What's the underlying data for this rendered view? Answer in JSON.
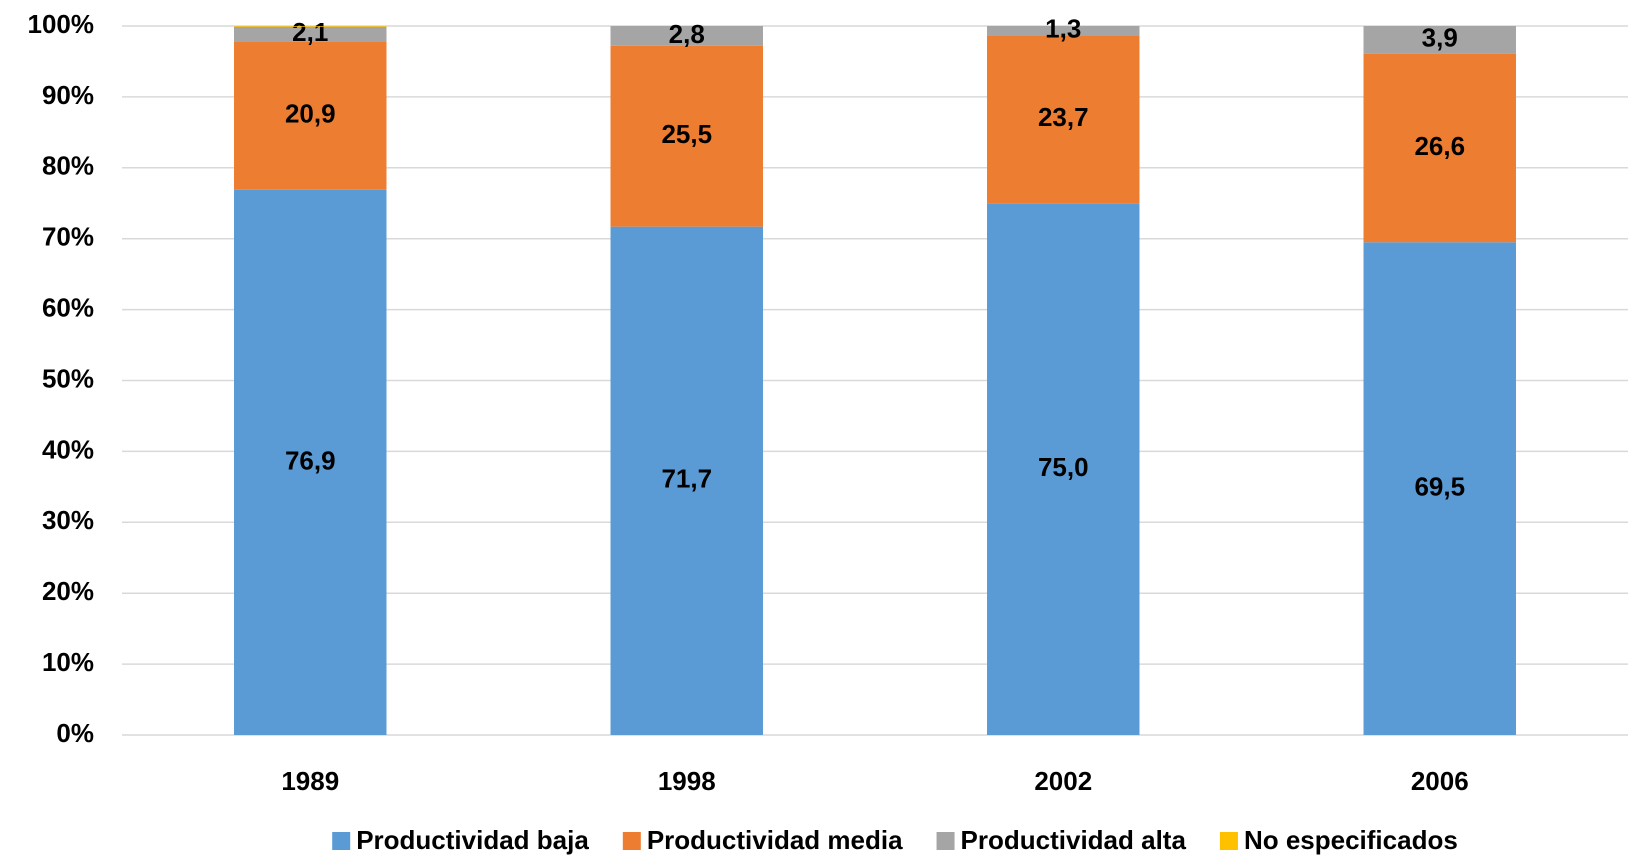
{
  "chart_data": {
    "type": "stacked_bar",
    "categories": [
      "1989",
      "1998",
      "2002",
      "2006"
    ],
    "series": [
      {
        "name": "Productividad baja",
        "color": "#5b9bd5",
        "values": [
          76.9,
          71.7,
          75.0,
          69.5
        ],
        "value_labels": [
          "76,9",
          "71,7",
          "75,0",
          "69,5"
        ]
      },
      {
        "name": "Productividad media",
        "color": "#ed7d31",
        "values": [
          20.9,
          25.5,
          23.7,
          26.6
        ],
        "value_labels": [
          "20,9",
          "25,5",
          "23,7",
          "26,6"
        ]
      },
      {
        "name": "Productividad alta",
        "color": "#a5a5a5",
        "values": [
          2.1,
          2.8,
          1.3,
          3.9
        ],
        "value_labels": [
          "2,1",
          "2,8",
          "1,3",
          "3,9"
        ]
      },
      {
        "name": "No especificados",
        "color": "#ffc000",
        "values": [
          0.1,
          0,
          0,
          0
        ]
      }
    ],
    "ylim": [
      0,
      100
    ],
    "yticks": [
      {
        "value": 0,
        "label": "0%"
      },
      {
        "value": 10,
        "label": "10%"
      },
      {
        "value": 20,
        "label": "20%"
      },
      {
        "value": 30,
        "label": "30%"
      },
      {
        "value": 40,
        "label": "40%"
      },
      {
        "value": 50,
        "label": "50%"
      },
      {
        "value": 60,
        "label": "60%"
      },
      {
        "value": 70,
        "label": "70%"
      },
      {
        "value": 80,
        "label": "80%"
      },
      {
        "value": 90,
        "label": "90%"
      },
      {
        "value": 100,
        "label": "100%"
      }
    ],
    "grid": true,
    "legend": "bottom"
  }
}
